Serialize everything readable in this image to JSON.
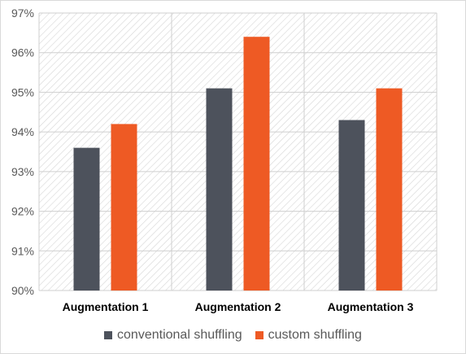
{
  "chart_data": {
    "type": "bar",
    "categories": [
      "Augmentation 1",
      "Augmentation 2",
      "Augmentation 3"
    ],
    "series": [
      {
        "name": "conventional shuffling",
        "values": [
          93.6,
          95.1,
          94.3
        ],
        "color": "#4d525c"
      },
      {
        "name": "custom shuffling",
        "values": [
          94.2,
          96.4,
          95.1
        ],
        "color": "#ee5a24"
      }
    ],
    "ylim": [
      90,
      97
    ],
    "yticks": [
      90,
      91,
      92,
      93,
      94,
      95,
      96,
      97
    ],
    "ytick_labels": [
      "90%",
      "91%",
      "92%",
      "93%",
      "94%",
      "95%",
      "96%",
      "97%"
    ],
    "xlabel": "",
    "ylabel": "",
    "title": "",
    "grid": true,
    "legend_position": "bottom"
  }
}
